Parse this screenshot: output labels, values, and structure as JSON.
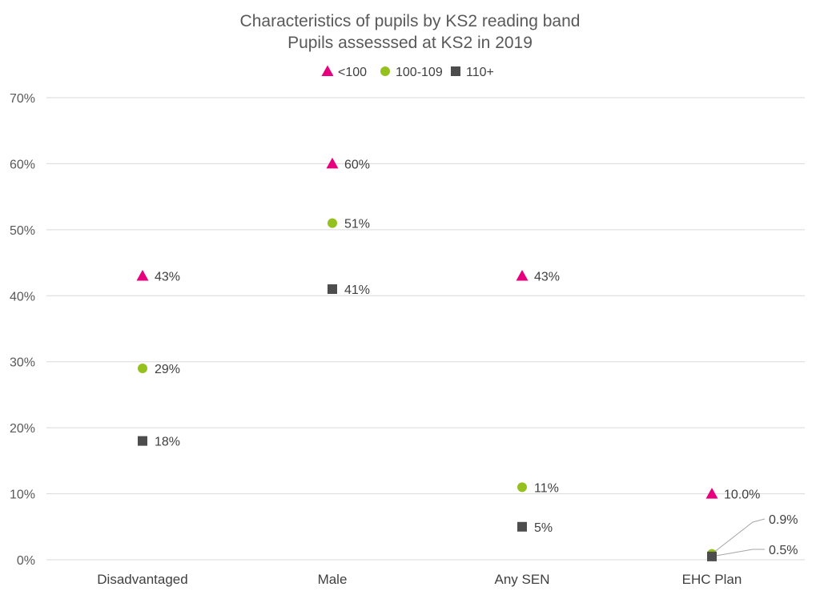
{
  "chart_data": {
    "type": "scatter",
    "title": "Characteristics of pupils by KS2 reading band",
    "subtitle": "Pupils assesssed at KS2 in 2019",
    "categories": [
      "Disadvantaged",
      "Male",
      "Any SEN",
      "EHC Plan"
    ],
    "ylim": [
      0,
      70
    ],
    "yticks": [
      0,
      10,
      20,
      30,
      40,
      50,
      60,
      70
    ],
    "ytick_labels": [
      "0%",
      "10%",
      "20%",
      "30%",
      "40%",
      "50%",
      "60%",
      "70%"
    ],
    "grid": true,
    "legend_position": "top",
    "series": [
      {
        "name": "<100",
        "marker": "triangle",
        "color": "#e6007e",
        "values": [
          43,
          60,
          43,
          10.0
        ],
        "labels": [
          "43%",
          "60%",
          "43%",
          "10.0%"
        ]
      },
      {
        "name": "100-109",
        "marker": "circle",
        "color": "#95c11f",
        "values": [
          29,
          51,
          11,
          0.9
        ],
        "labels": [
          "29%",
          "51%",
          "11%",
          "0.9%"
        ]
      },
      {
        "name": "110+",
        "marker": "square",
        "color": "#4d4d4d",
        "values": [
          18,
          41,
          5,
          0.5
        ],
        "labels": [
          "18%",
          "41%",
          "5%",
          "0.5%"
        ]
      }
    ]
  }
}
